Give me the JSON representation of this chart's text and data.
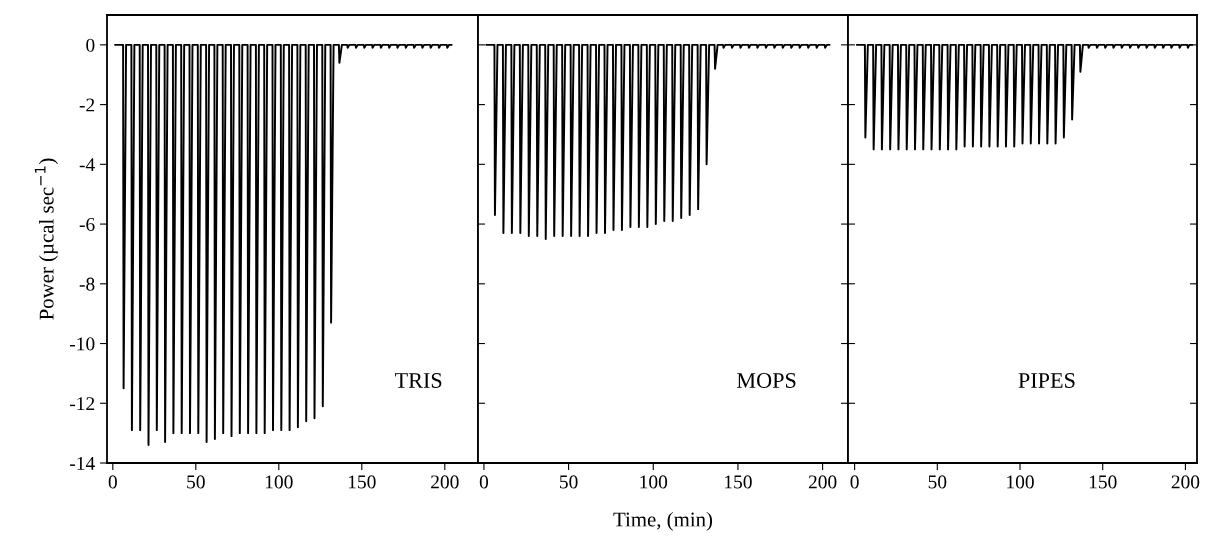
{
  "chart_data": [
    {
      "type": "line",
      "ylabel": "Power (µcal sec$^{−1}$)",
      "annotations": [
        "TRIS"
      ],
      "xlim": [
        -3.5,
        220
      ],
      "xticks": [
        0,
        50,
        100,
        150,
        200
      ],
      "ylim": [
        -14,
        1
      ],
      "yticks": [
        0,
        -2,
        -4,
        -6,
        -8,
        -10,
        -12,
        -14
      ],
      "grid": false,
      "legend": false,
      "marker": "none",
      "line_style": "solid",
      "series": [
        {
          "color": "#000000",
          "x": [
            1.5,
            6.2,
            6.5,
            8,
            11.2,
            11.5,
            13,
            16.2,
            16.5,
            18,
            21.2,
            21.5,
            23,
            26.2,
            26.5,
            28,
            31.2,
            31.5,
            33,
            36.2,
            36.5,
            38,
            41.2,
            41.5,
            43,
            46.2,
            46.5,
            48,
            51.2,
            51.5,
            53,
            56.2,
            56.5,
            58,
            61.2,
            61.5,
            63,
            66.2,
            66.5,
            68,
            71.2,
            71.5,
            73,
            76.2,
            76.5,
            78,
            81.2,
            81.5,
            83,
            86.2,
            86.5,
            88,
            91.2,
            91.5,
            93,
            96.2,
            96.5,
            98,
            101.2,
            101.5,
            103,
            106.2,
            106.5,
            108,
            111.2,
            111.5,
            113,
            116.2,
            116.5,
            118,
            121.2,
            121.5,
            123,
            126.2,
            126.5,
            128,
            131.2,
            131.5,
            133,
            136.2,
            136.5,
            138,
            141.2,
            141.5,
            142.5,
            146.2,
            146.5,
            147.5,
            151.2,
            151.5,
            152.5,
            156.2,
            156.5,
            157.5,
            161.2,
            161.5,
            162.5,
            166.2,
            166.5,
            167.5,
            171.2,
            171.5,
            172.5,
            176.2,
            176.5,
            177.5,
            181.2,
            181.5,
            182.5,
            186.2,
            186.5,
            187.5,
            191.2,
            191.5,
            192.5,
            196.2,
            196.5,
            197.5,
            201.2,
            201.5,
            202.5,
            204
          ],
          "values": [
            0,
            0,
            -11.5,
            0,
            0,
            -12.9,
            0,
            0,
            -12.9,
            0,
            0,
            -13.4,
            0,
            0,
            -12.9,
            0,
            0,
            -13.3,
            0,
            0,
            -13.0,
            0,
            0,
            -13.0,
            0,
            0,
            -13.0,
            0,
            0,
            -13.0,
            0,
            0,
            -13.3,
            0,
            0,
            -13.2,
            0,
            0,
            -13.0,
            0,
            0,
            -13.1,
            0,
            0,
            -13.0,
            0,
            0,
            -13.0,
            0,
            0,
            -13.0,
            0,
            0,
            -13.0,
            0,
            0,
            -12.9,
            0,
            0,
            -12.9,
            0,
            0,
            -12.9,
            0,
            0,
            -12.8,
            0,
            0,
            -12.6,
            0,
            0,
            -12.5,
            0,
            0,
            -12.1,
            0,
            0,
            -9.3,
            0,
            0,
            -0.6,
            0,
            0,
            -0.1,
            0,
            0,
            -0.1,
            0,
            0,
            -0.1,
            0,
            0,
            -0.1,
            0,
            0,
            -0.1,
            0,
            0,
            -0.1,
            0,
            0,
            -0.1,
            0,
            0,
            -0.1,
            0,
            0,
            -0.1,
            0,
            0,
            -0.1,
            0,
            0,
            -0.1,
            0,
            0,
            -0.1,
            0,
            0,
            -0.1,
            0,
            0
          ]
        }
      ]
    },
    {
      "type": "line",
      "xlabel": "Time, (min)",
      "annotations": [
        "MOPS"
      ],
      "xlim": [
        -3.5,
        215
      ],
      "xticks": [
        0,
        50,
        100,
        150,
        200
      ],
      "ylim": [
        -14,
        1
      ],
      "yticks": [
        0,
        -2,
        -4,
        -6,
        -8,
        -10,
        -12,
        -14
      ],
      "tick_labels": "x",
      "grid": false,
      "legend": false,
      "marker": "none",
      "line_style": "solid",
      "series": [
        {
          "color": "#000000",
          "x": [
            1.5,
            6.2,
            6.5,
            8,
            11.2,
            11.5,
            13,
            16.2,
            16.5,
            18,
            21.2,
            21.5,
            23,
            26.2,
            26.5,
            28,
            31.2,
            31.5,
            33,
            36.2,
            36.5,
            38,
            41.2,
            41.5,
            43,
            46.2,
            46.5,
            48,
            51.2,
            51.5,
            53,
            56.2,
            56.5,
            58,
            61.2,
            61.5,
            63,
            66.2,
            66.5,
            68,
            71.2,
            71.5,
            73,
            76.2,
            76.5,
            78,
            81.2,
            81.5,
            83,
            86.2,
            86.5,
            88,
            91.2,
            91.5,
            93,
            96.2,
            96.5,
            98,
            101.2,
            101.5,
            103,
            106.2,
            106.5,
            108,
            111.2,
            111.5,
            113,
            116.2,
            116.5,
            118,
            121.2,
            121.5,
            123,
            126.2,
            126.5,
            128,
            131.2,
            131.5,
            133,
            136.2,
            136.5,
            138,
            141.2,
            141.5,
            142.5,
            146.2,
            146.5,
            147.5,
            151.2,
            151.5,
            152.5,
            156.2,
            156.5,
            157.5,
            161.2,
            161.5,
            162.5,
            166.2,
            166.5,
            167.5,
            171.2,
            171.5,
            172.5,
            176.2,
            176.5,
            177.5,
            181.2,
            181.5,
            182.5,
            186.2,
            186.5,
            187.5,
            191.2,
            191.5,
            192.5,
            196.2,
            196.5,
            197.5,
            201.2,
            201.5,
            202.5,
            204
          ],
          "values": [
            0,
            0,
            -5.7,
            0,
            0,
            -6.3,
            0,
            0,
            -6.3,
            0,
            0,
            -6.3,
            0,
            0,
            -6.4,
            0,
            0,
            -6.4,
            0,
            0,
            -6.5,
            0,
            0,
            -6.4,
            0,
            0,
            -6.4,
            0,
            0,
            -6.4,
            0,
            0,
            -6.4,
            0,
            0,
            -6.4,
            0,
            0,
            -6.3,
            0,
            0,
            -6.3,
            0,
            0,
            -6.2,
            0,
            0,
            -6.2,
            0,
            0,
            -6.1,
            0,
            0,
            -6.1,
            0,
            0,
            -6.1,
            0,
            0,
            -6.0,
            0,
            0,
            -5.9,
            0,
            0,
            -5.9,
            0,
            0,
            -5.8,
            0,
            0,
            -5.7,
            0,
            0,
            -5.5,
            0,
            0,
            -4.0,
            0,
            0,
            -0.8,
            0,
            0,
            -0.1,
            0,
            0,
            -0.1,
            0,
            0,
            -0.1,
            0,
            0,
            -0.1,
            0,
            0,
            -0.1,
            0,
            0,
            -0.1,
            0,
            0,
            -0.1,
            0,
            0,
            -0.1,
            0,
            0,
            -0.1,
            0,
            0,
            -0.1,
            0,
            0,
            -0.1,
            0,
            0,
            -0.1,
            0,
            0,
            -0.1,
            0,
            0
          ]
        }
      ]
    },
    {
      "type": "line",
      "annotations": [
        "PIPES"
      ],
      "xlim": [
        -4,
        207
      ],
      "xticks": [
        0,
        50,
        100,
        150,
        200
      ],
      "ylim": [
        -14,
        1
      ],
      "yticks": [
        0,
        -2,
        -4,
        -6,
        -8,
        -10,
        -12,
        -14
      ],
      "tick_labels": "x",
      "grid": false,
      "legend": false,
      "marker": "none",
      "line_style": "solid",
      "series": [
        {
          "color": "#000000",
          "x": [
            1.5,
            6.2,
            6.5,
            8,
            11.2,
            11.5,
            13,
            16.2,
            16.5,
            18,
            21.2,
            21.5,
            23,
            26.2,
            26.5,
            28,
            31.2,
            31.5,
            33,
            36.2,
            36.5,
            38,
            41.2,
            41.5,
            43,
            46.2,
            46.5,
            48,
            51.2,
            51.5,
            53,
            56.2,
            56.5,
            58,
            61.2,
            61.5,
            63,
            66.2,
            66.5,
            68,
            71.2,
            71.5,
            73,
            76.2,
            76.5,
            78,
            81.2,
            81.5,
            83,
            86.2,
            86.5,
            88,
            91.2,
            91.5,
            93,
            96.2,
            96.5,
            98,
            101.2,
            101.5,
            103,
            106.2,
            106.5,
            108,
            111.2,
            111.5,
            113,
            116.2,
            116.5,
            118,
            121.2,
            121.5,
            123,
            126.2,
            126.5,
            128,
            131.2,
            131.5,
            133,
            136.2,
            136.5,
            138,
            141.2,
            141.5,
            142.5,
            146.2,
            146.5,
            147.5,
            151.2,
            151.5,
            152.5,
            156.2,
            156.5,
            157.5,
            161.2,
            161.5,
            162.5,
            166.2,
            166.5,
            167.5,
            171.2,
            171.5,
            172.5,
            176.2,
            176.5,
            177.5,
            181.2,
            181.5,
            182.5,
            186.2,
            186.5,
            187.5,
            191.2,
            191.5,
            192.5,
            196.2,
            196.5,
            197.5,
            201.2,
            201.5,
            202.5,
            204
          ],
          "values": [
            0,
            0,
            -3.1,
            0,
            0,
            -3.5,
            0,
            0,
            -3.5,
            0,
            0,
            -3.5,
            0,
            0,
            -3.5,
            0,
            0,
            -3.5,
            0,
            0,
            -3.5,
            0,
            0,
            -3.5,
            0,
            0,
            -3.5,
            0,
            0,
            -3.5,
            0,
            0,
            -3.5,
            0,
            0,
            -3.5,
            0,
            0,
            -3.4,
            0,
            0,
            -3.4,
            0,
            0,
            -3.4,
            0,
            0,
            -3.4,
            0,
            0,
            -3.4,
            0,
            0,
            -3.4,
            0,
            0,
            -3.4,
            0,
            0,
            -3.3,
            0,
            0,
            -3.3,
            0,
            0,
            -3.3,
            0,
            0,
            -3.3,
            0,
            0,
            -3.3,
            0,
            0,
            -3.1,
            0,
            0,
            -2.5,
            0,
            0,
            -0.9,
            0,
            0,
            -0.1,
            0,
            0,
            -0.1,
            0,
            0,
            -0.1,
            0,
            0,
            -0.1,
            0,
            0,
            -0.1,
            0,
            0,
            -0.1,
            0,
            0,
            -0.1,
            0,
            0,
            -0.1,
            0,
            0,
            -0.1,
            0,
            0,
            -0.1,
            0,
            0,
            -0.1,
            0,
            0,
            -0.1,
            0,
            0,
            -0.1,
            0,
            0
          ]
        }
      ]
    }
  ]
}
